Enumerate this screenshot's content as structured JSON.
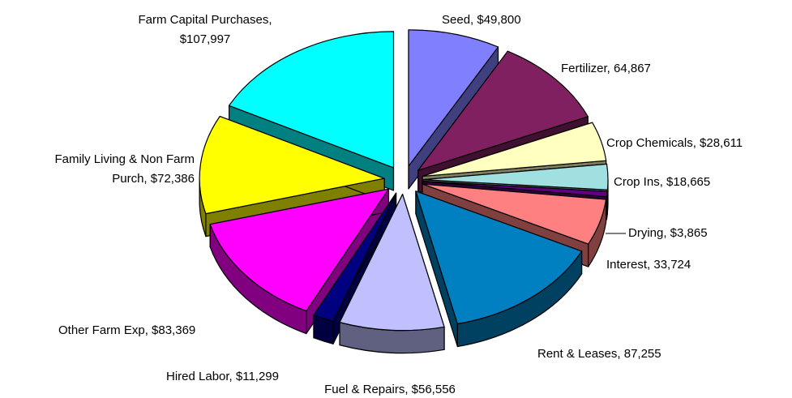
{
  "chart_data": {
    "type": "pie3d",
    "values": [
      49800,
      64867,
      28611,
      18665,
      3865,
      33724,
      87255,
      56556,
      11299,
      83369,
      72386,
      107997
    ],
    "value_labels": [
      "Seed, $49,800",
      "Fertilizer, 64,867",
      "Crop Chemicals, $28,611",
      "Crop Ins, $18,665",
      "Drying, $3,865",
      "Interest, 33,724",
      "Rent & Leases, 87,255",
      "Fuel & Repairs, $56,556",
      "Hired Labor, $11,299",
      "Other Farm Exp, $83,369",
      "Family Living & Non Farm\nPurch, $72,386",
      "Farm Capital Purchases,\n$107,997"
    ],
    "colors": [
      "#8080ff",
      "#802060",
      "#ffffc0",
      "#a0e0e0",
      "#600080",
      "#ff8080",
      "#0080c0",
      "#c0c0ff",
      "#000080",
      "#ff00ff",
      "#ffff00",
      "#00ffff"
    ],
    "side_colors": [
      "#404080",
      "#401030",
      "#808060",
      "#507070",
      "#300040",
      "#804040",
      "#004060",
      "#606080",
      "#000040",
      "#800080",
      "#808000",
      "#008080"
    ]
  }
}
